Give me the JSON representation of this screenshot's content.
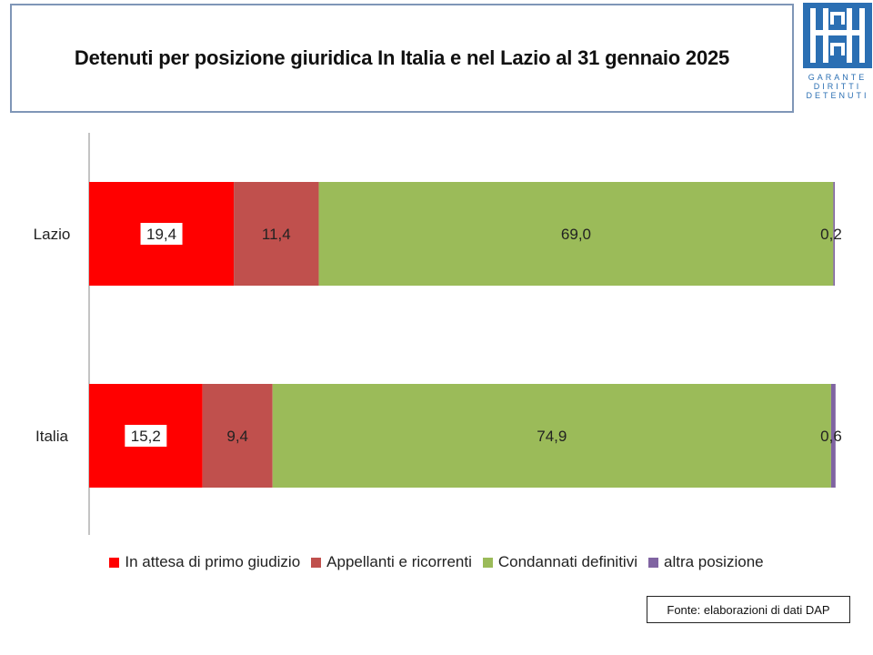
{
  "header": {
    "title": "Detenuti per posizione giuridica In Italia e nel Lazio al 31 gennaio 2025"
  },
  "logo": {
    "icon": "garante-logo-icon",
    "lines": [
      "GARANTE",
      "DIRITTI",
      "DETENUTI"
    ],
    "color": "#2b6fb3"
  },
  "source_note": "Fonte: elaborazioni di dati DAP",
  "chart_data": {
    "type": "bar",
    "orientation": "horizontal",
    "stacked": true,
    "percent_stacked": true,
    "title": "Detenuti per posizione giuridica In Italia e nel Lazio al 31 gennaio 2025",
    "categories": [
      "Lazio",
      "Italia"
    ],
    "series": [
      {
        "name": "In attesa di primo giudizio",
        "color": "#ff0000",
        "values": [
          19.4,
          15.2
        ],
        "labels": [
          "19,4",
          "15,2"
        ]
      },
      {
        "name": "Appellanti e ricorrenti",
        "color": "#c0504d",
        "values": [
          11.4,
          9.4
        ],
        "labels": [
          "11,4",
          "9,4"
        ]
      },
      {
        "name": "Condannati definitivi",
        "color": "#9bbb59",
        "values": [
          69.0,
          74.9
        ],
        "labels": [
          "69,0",
          "74,9"
        ]
      },
      {
        "name": "altra posizione",
        "color": "#8064a2",
        "values": [
          0.2,
          0.6
        ],
        "labels": [
          "0,2",
          "0,6"
        ]
      }
    ],
    "xlim": [
      0,
      100
    ],
    "grid": false,
    "legend_position": "bottom"
  }
}
